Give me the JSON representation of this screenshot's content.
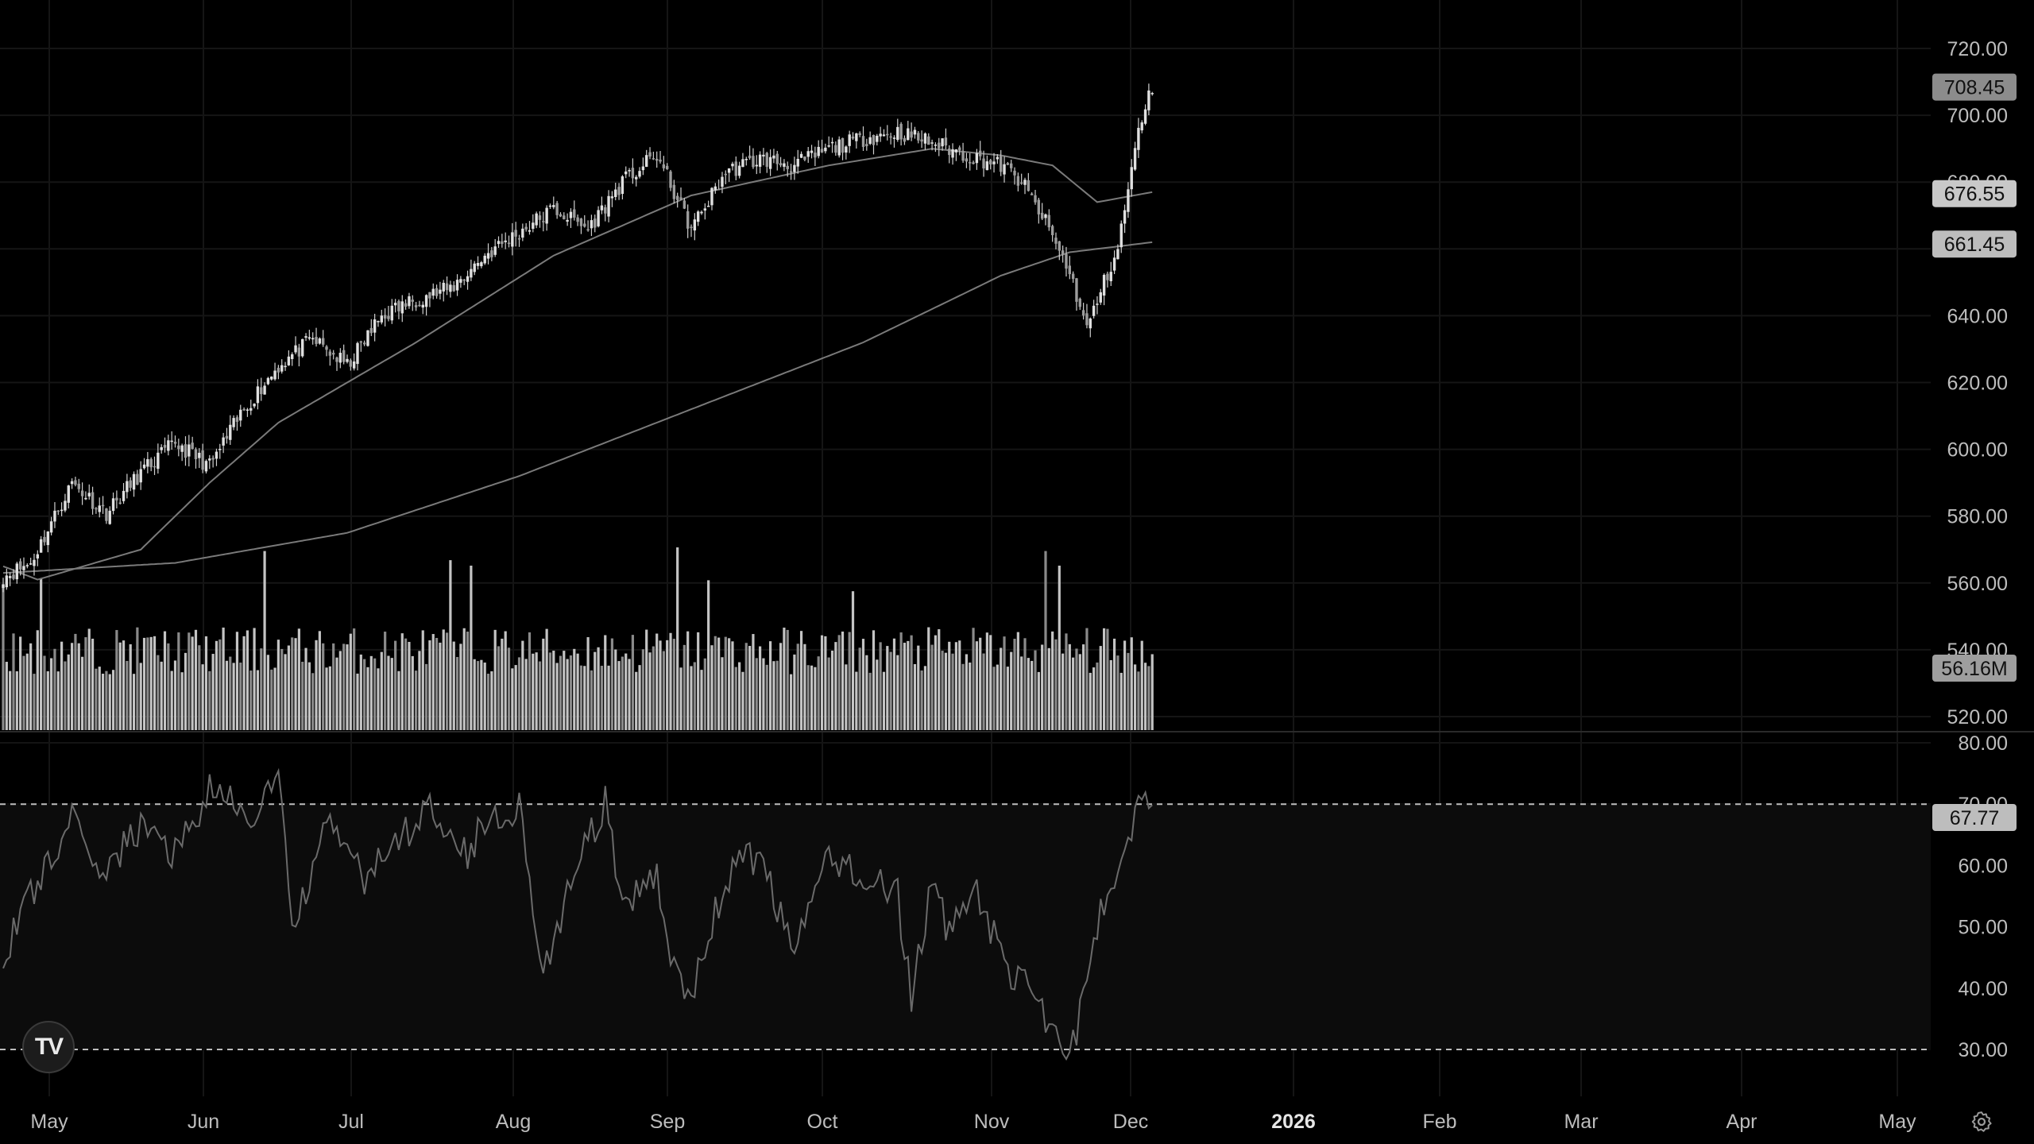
{
  "chart_data": [
    {
      "type": "candlestick",
      "title": "",
      "ylim": [
        510,
        728
      ],
      "y_ticks": [
        "720.00",
        "700.00",
        "680.00",
        "660.00",
        "640.00",
        "620.00",
        "600.00",
        "580.00",
        "560.00",
        "540.00",
        "520.00"
      ],
      "x_ticks": [
        "May",
        "Jun",
        "Jul",
        "Aug",
        "Sep",
        "Oct",
        "Nov",
        "Dec",
        "2026",
        "Feb",
        "Mar",
        "Apr",
        "May"
      ],
      "anchors": [
        [
          0,
          562
        ],
        [
          8,
          566
        ],
        [
          20,
          590
        ],
        [
          30,
          581
        ],
        [
          40,
          593
        ],
        [
          50,
          602
        ],
        [
          60,
          595
        ],
        [
          70,
          612
        ],
        [
          80,
          625
        ],
        [
          90,
          633
        ],
        [
          100,
          625
        ],
        [
          110,
          640
        ],
        [
          120,
          645
        ],
        [
          130,
          648
        ],
        [
          140,
          658
        ],
        [
          150,
          665
        ],
        [
          160,
          672
        ],
        [
          170,
          666
        ],
        [
          180,
          680
        ],
        [
          190,
          688
        ],
        [
          200,
          666
        ],
        [
          210,
          683
        ],
        [
          220,
          687
        ],
        [
          230,
          685
        ],
        [
          240,
          690
        ],
        [
          250,
          693
        ],
        [
          260,
          695
        ],
        [
          270,
          692
        ],
        [
          280,
          688
        ],
        [
          290,
          685
        ],
        [
          296,
          680
        ],
        [
          303,
          668
        ],
        [
          310,
          653
        ],
        [
          315,
          636
        ],
        [
          320,
          650
        ],
        [
          324,
          660
        ],
        [
          327,
          678
        ],
        [
          331,
          700
        ],
        [
          334,
          708
        ]
      ],
      "series": [
        {
          "name": "",
          "kind": "moving-average-long",
          "values_at": [
            [
              0,
              563
            ],
            [
              50,
              566
            ],
            [
              100,
              575
            ],
            [
              150,
              592
            ],
            [
              200,
              612
            ],
            [
              250,
              632
            ],
            [
              290,
              652
            ],
            [
              310,
              659
            ],
            [
              334,
              662
            ]
          ]
        },
        {
          "name": "",
          "kind": "moving-average-short",
          "values_at": [
            [
              0,
              565
            ],
            [
              10,
              561
            ],
            [
              40,
              570
            ],
            [
              60,
              590
            ],
            [
              80,
              608
            ],
            [
              120,
              632
            ],
            [
              160,
              658
            ],
            [
              180,
              667
            ],
            [
              200,
              676
            ],
            [
              240,
              685
            ],
            [
              270,
              690
            ],
            [
              290,
              688
            ],
            [
              305,
              685
            ],
            [
              318,
              674
            ],
            [
              334,
              677
            ]
          ]
        }
      ],
      "price_tags": [
        {
          "label": "708.45",
          "value": 708.45,
          "color": "#8c8c8c"
        },
        {
          "label": "676.55",
          "value": 676.55,
          "color": "#c8c8c8"
        },
        {
          "label": "661.45",
          "value": 661.45,
          "color": "#bdbdbd"
        }
      ]
    },
    {
      "type": "bar",
      "title": "",
      "tag": {
        "label": "56.16M",
        "value": 56.16
      },
      "volume_spikes": [
        [
          0,
          80
        ],
        [
          11,
          83
        ],
        [
          76,
          98
        ],
        [
          130,
          93
        ],
        [
          136,
          90
        ],
        [
          196,
          100
        ],
        [
          205,
          82
        ],
        [
          247,
          76
        ],
        [
          303,
          98
        ],
        [
          307,
          90
        ]
      ]
    },
    {
      "type": "line",
      "title": "",
      "ylim": [
        24,
        82
      ],
      "y_ticks": [
        "80.00",
        "70.00",
        "60.00",
        "50.00",
        "40.00",
        "30.00"
      ],
      "bands": [
        30,
        70
      ],
      "tag": {
        "label": "67.77",
        "value": 67.77
      },
      "anchors": [
        [
          0,
          45
        ],
        [
          8,
          55
        ],
        [
          20,
          68
        ],
        [
          26,
          58
        ],
        [
          40,
          66
        ],
        [
          50,
          62
        ],
        [
          60,
          72
        ],
        [
          72,
          68
        ],
        [
          80,
          74
        ],
        [
          84,
          50
        ],
        [
          95,
          67
        ],
        [
          105,
          58
        ],
        [
          115,
          64
        ],
        [
          125,
          70
        ],
        [
          135,
          62
        ],
        [
          140,
          67
        ],
        [
          150,
          70
        ],
        [
          157,
          42
        ],
        [
          165,
          57
        ],
        [
          175,
          70
        ],
        [
          180,
          52
        ],
        [
          190,
          59
        ],
        [
          193,
          48
        ],
        [
          200,
          38
        ],
        [
          210,
          58
        ],
        [
          220,
          62
        ],
        [
          230,
          45
        ],
        [
          240,
          62
        ],
        [
          250,
          58
        ],
        [
          260,
          55
        ],
        [
          264,
          38
        ],
        [
          270,
          58
        ],
        [
          275,
          48
        ],
        [
          282,
          58
        ],
        [
          290,
          45
        ],
        [
          300,
          38
        ],
        [
          306,
          33
        ],
        [
          310,
          28
        ],
        [
          318,
          50
        ],
        [
          325,
          62
        ],
        [
          332,
          73
        ],
        [
          337,
          68
        ]
      ]
    }
  ],
  "logo": {
    "text": "TV"
  },
  "icons": {
    "settings": "gear-icon",
    "logo": "tradingview-logo"
  },
  "colors": {
    "background": "#000000",
    "grid": "#181818",
    "candles": "#cfcfcf",
    "volume": "#bfbfbf",
    "rsi_line": "#6a6a6a",
    "ma": "#7a7a7a"
  }
}
